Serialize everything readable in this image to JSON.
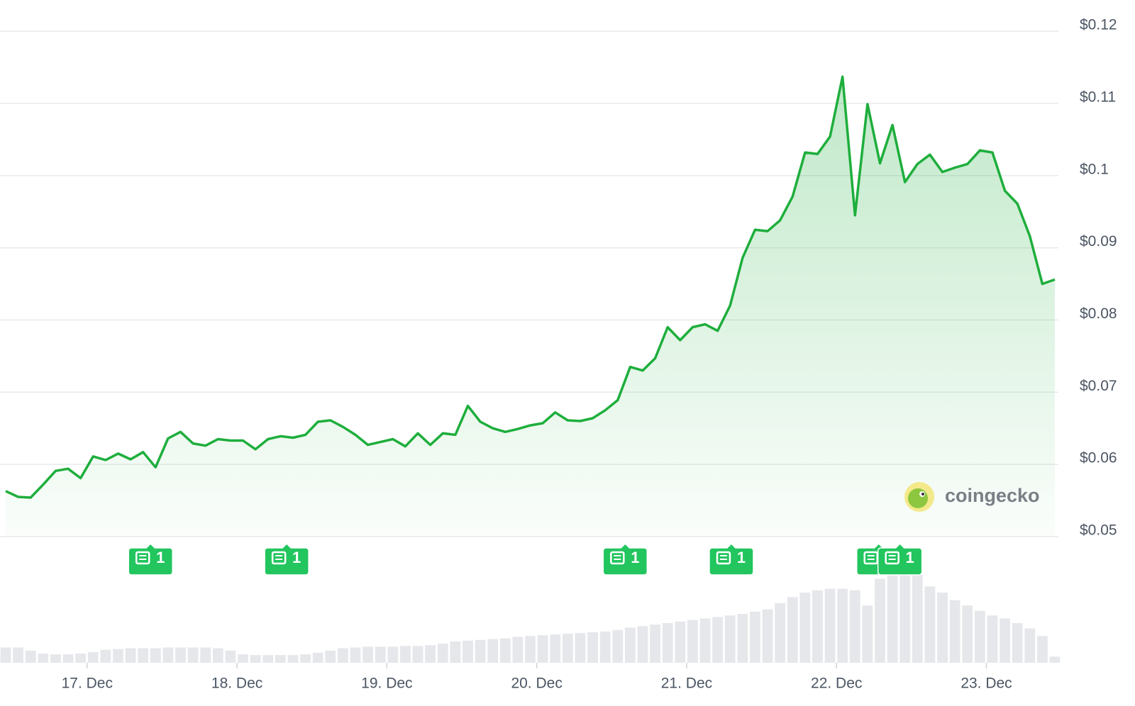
{
  "chart_data": {
    "type": "line",
    "xlim": [
      0,
      84
    ],
    "xticks": [
      {
        "value": 6.52,
        "label": "17. Dec"
      },
      {
        "value": 18.52,
        "label": "18. Dec"
      },
      {
        "value": 30.52,
        "label": "19. Dec"
      },
      {
        "value": 42.52,
        "label": "20. Dec"
      },
      {
        "value": 54.52,
        "label": "21. Dec"
      },
      {
        "value": 66.52,
        "label": "22. Dec"
      },
      {
        "value": 78.52,
        "label": "23. Dec"
      }
    ],
    "ylim": [
      0.05,
      0.12
    ],
    "yticks": [
      {
        "value": 0.05,
        "label": "$0.05"
      },
      {
        "value": 0.06,
        "label": "$0.06"
      },
      {
        "value": 0.07,
        "label": "$0.07"
      },
      {
        "value": 0.08,
        "label": "$0.08"
      },
      {
        "value": 0.09,
        "label": "$0.09"
      },
      {
        "value": 0.1,
        "label": "$0.1"
      },
      {
        "value": 0.11,
        "label": "$0.11"
      },
      {
        "value": 0.12,
        "label": "$0.12"
      }
    ],
    "grid": true,
    "series": [
      {
        "color": "#1eae3c",
        "values": [
          0.0563,
          0.0555,
          0.0554,
          0.0572,
          0.0591,
          0.0594,
          0.0581,
          0.0611,
          0.0606,
          0.0615,
          0.0607,
          0.0617,
          0.0596,
          0.0636,
          0.0645,
          0.0629,
          0.0626,
          0.0635,
          0.0633,
          0.0633,
          0.0621,
          0.0635,
          0.0639,
          0.0637,
          0.0641,
          0.0659,
          0.0661,
          0.0652,
          0.0641,
          0.0627,
          0.0631,
          0.0635,
          0.0625,
          0.0643,
          0.0627,
          0.0643,
          0.0641,
          0.0681,
          0.0659,
          0.065,
          0.0645,
          0.0649,
          0.0654,
          0.0657,
          0.0672,
          0.0661,
          0.066,
          0.0664,
          0.0675,
          0.0689,
          0.0735,
          0.073,
          0.0747,
          0.079,
          0.0772,
          0.079,
          0.0794,
          0.0785,
          0.082,
          0.0886,
          0.0925,
          0.0923,
          0.0938,
          0.0971,
          0.1032,
          0.103,
          0.1054,
          0.1137,
          0.0945,
          0.1099,
          0.1017,
          0.107,
          0.0991,
          0.1016,
          0.1029,
          0.1005,
          0.1011,
          0.1016,
          0.1035,
          0.1032,
          0.0979,
          0.0961,
          0.0916,
          0.085,
          0.0856
        ]
      }
    ],
    "volume": [
      20,
      20,
      16,
      12,
      11,
      11,
      12,
      14,
      17,
      18,
      19,
      19,
      19,
      20,
      20,
      20,
      20,
      19,
      16,
      11,
      10,
      10,
      10,
      10,
      11,
      13,
      16,
      19,
      20,
      21,
      21,
      21,
      22,
      22,
      23,
      25,
      28,
      29,
      30,
      31,
      32,
      34,
      35,
      36,
      37,
      38,
      39,
      40,
      41,
      43,
      46,
      48,
      50,
      52,
      54,
      56,
      58,
      60,
      62,
      64,
      67,
      70,
      78,
      86,
      92,
      95,
      97,
      97,
      95,
      75,
      110,
      125,
      130,
      115,
      100,
      92,
      82,
      75,
      68,
      62,
      58,
      52,
      45,
      35,
      8
    ],
    "news": {
      "x": [
        11.6,
        22.5,
        49.6,
        58.1,
        69.9,
        71.6
      ],
      "labels": [
        "1",
        "1",
        "1",
        "1",
        "1",
        "1"
      ]
    },
    "watermark": "coingecko"
  }
}
